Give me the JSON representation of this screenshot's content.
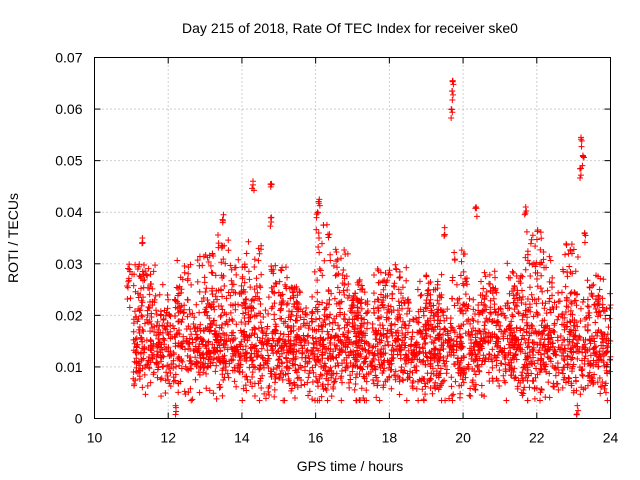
{
  "chart_data": {
    "type": "scatter",
    "title": "Day 215 of 2018, Rate Of TEC Index for receiver ske0",
    "xlabel": "GPS time / hours",
    "ylabel": "ROTI / TECUs",
    "xlim": [
      10,
      24
    ],
    "ylim": [
      0,
      0.07
    ],
    "xticks": [
      "10",
      "12",
      "14",
      "16",
      "18",
      "20",
      "22",
      "24"
    ],
    "yticks": [
      "0",
      "0.01",
      "0.02",
      "0.03",
      "0.04",
      "0.05",
      "0.06",
      "0.07"
    ],
    "grid": true,
    "marker": "+",
    "color": "#ff0000",
    "series": [
      {
        "name": "ROTI",
        "x_range": [
          11.05,
          24.0
        ],
        "typical_range": [
          0.004,
          0.027
        ],
        "notable_points": [
          {
            "x": 11.3,
            "y": 0.035
          },
          {
            "x": 13.5,
            "y": 0.0395
          },
          {
            "x": 14.3,
            "y": 0.046
          },
          {
            "x": 14.8,
            "y": 0.0455
          },
          {
            "x": 14.8,
            "y": 0.039
          },
          {
            "x": 16.1,
            "y": 0.0425
          },
          {
            "x": 16.05,
            "y": 0.04
          },
          {
            "x": 19.5,
            "y": 0.037
          },
          {
            "x": 19.72,
            "y": 0.0655
          },
          {
            "x": 19.7,
            "y": 0.0635
          },
          {
            "x": 19.68,
            "y": 0.06
          },
          {
            "x": 20.35,
            "y": 0.041
          },
          {
            "x": 21.7,
            "y": 0.041
          },
          {
            "x": 23.2,
            "y": 0.0545
          },
          {
            "x": 23.25,
            "y": 0.051
          },
          {
            "x": 23.2,
            "y": 0.0485
          },
          {
            "x": 23.3,
            "y": 0.036
          },
          {
            "x": 24.0,
            "y": 0.022
          },
          {
            "x": 12.2,
            "y": 0.0025
          },
          {
            "x": 23.1,
            "y": 0.0025
          }
        ],
        "local_peaks": [
          {
            "x": 11.1,
            "y": 0.03
          },
          {
            "x": 11.5,
            "y": 0.03
          },
          {
            "x": 12.4,
            "y": 0.031
          },
          {
            "x": 13.0,
            "y": 0.033
          },
          {
            "x": 13.5,
            "y": 0.036
          },
          {
            "x": 13.9,
            "y": 0.031
          },
          {
            "x": 14.3,
            "y": 0.035
          },
          {
            "x": 15.0,
            "y": 0.03
          },
          {
            "x": 15.4,
            "y": 0.026
          },
          {
            "x": 16.2,
            "y": 0.038
          },
          {
            "x": 16.7,
            "y": 0.033
          },
          {
            "x": 17.2,
            "y": 0.027
          },
          {
            "x": 17.8,
            "y": 0.029
          },
          {
            "x": 18.3,
            "y": 0.03
          },
          {
            "x": 19.2,
            "y": 0.029
          },
          {
            "x": 19.9,
            "y": 0.033
          },
          {
            "x": 20.7,
            "y": 0.029
          },
          {
            "x": 21.4,
            "y": 0.031
          },
          {
            "x": 21.9,
            "y": 0.037
          },
          {
            "x": 22.2,
            "y": 0.033
          },
          {
            "x": 22.9,
            "y": 0.034
          },
          {
            "x": 23.6,
            "y": 0.028
          }
        ]
      }
    ]
  }
}
